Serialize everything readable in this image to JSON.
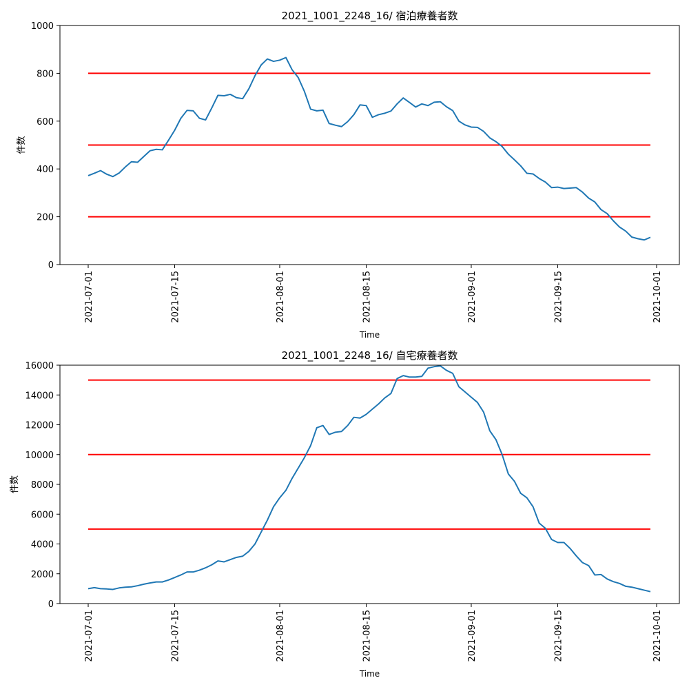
{
  "chart_data": [
    {
      "type": "line",
      "title": "2021_1001_2248_16/ 宿泊療養者数",
      "xlabel": "Time",
      "ylabel": "件数",
      "ylim": [
        0,
        1000
      ],
      "yticks": [
        0,
        200,
        400,
        600,
        800,
        1000
      ],
      "xticks": [
        "2021-07-01",
        "2021-07-15",
        "2021-08-01",
        "2021-08-15",
        "2021-09-01",
        "2021-09-15",
        "2021-10-01"
      ],
      "grid": false,
      "line_color": "#1f77b4",
      "threshold_color": "#ff0000",
      "thresholds": [
        200,
        500,
        800
      ],
      "x_start": "2021-07-01",
      "x_end": "2021-09-30",
      "values": [
        372,
        382,
        393,
        378,
        368,
        383,
        408,
        430,
        428,
        452,
        476,
        482,
        480,
        520,
        562,
        612,
        645,
        643,
        612,
        605,
        655,
        708,
        706,
        712,
        698,
        694,
        735,
        790,
        835,
        860,
        850,
        855,
        866,
        815,
        782,
        724,
        650,
        643,
        646,
        590,
        583,
        577,
        598,
        627,
        668,
        665,
        616,
        627,
        633,
        642,
        672,
        697,
        678,
        659,
        672,
        665,
        679,
        681,
        660,
        644,
        600,
        584,
        575,
        574,
        557,
        530,
        514,
        494,
        462,
        438,
        413,
        382,
        379,
        360,
        345,
        322,
        324,
        318,
        320,
        322,
        303,
        278,
        262,
        230,
        213,
        183,
        157,
        140,
        115,
        108,
        103,
        114
      ]
    },
    {
      "type": "line",
      "title": "2021_1001_2248_16/ 自宅療養者数",
      "xlabel": "Time",
      "ylabel": "件数",
      "ylim": [
        0,
        16000
      ],
      "yticks": [
        0,
        2000,
        4000,
        6000,
        8000,
        10000,
        12000,
        14000,
        16000
      ],
      "xticks": [
        "2021-07-01",
        "2021-07-15",
        "2021-08-01",
        "2021-08-15",
        "2021-09-01",
        "2021-09-15",
        "2021-10-01"
      ],
      "grid": false,
      "line_color": "#1f77b4",
      "threshold_color": "#ff0000",
      "thresholds": [
        5000,
        10000,
        15000
      ],
      "x_start": "2021-07-01",
      "x_end": "2021-09-30",
      "values": [
        1000,
        1070,
        1000,
        980,
        950,
        1050,
        1100,
        1120,
        1200,
        1300,
        1380,
        1450,
        1450,
        1580,
        1750,
        1920,
        2120,
        2120,
        2240,
        2400,
        2600,
        2860,
        2800,
        2950,
        3100,
        3180,
        3500,
        4000,
        4800,
        5600,
        6500,
        7100,
        7600,
        8400,
        9100,
        9800,
        10600,
        11800,
        11950,
        11350,
        11500,
        11550,
        11950,
        12500,
        12450,
        12700,
        13050,
        13400,
        13800,
        14100,
        15100,
        15300,
        15200,
        15200,
        15250,
        15800,
        15900,
        15950,
        15650,
        15450,
        14550,
        14200,
        13850,
        13500,
        12850,
        11600,
        11000,
        10000,
        8700,
        8200,
        7400,
        7100,
        6500,
        5400,
        5050,
        4300,
        4100,
        4100,
        3700,
        3200,
        2750,
        2550,
        1920,
        1950,
        1650,
        1470,
        1350,
        1160,
        1100,
        1000,
        900,
        800
      ]
    }
  ]
}
